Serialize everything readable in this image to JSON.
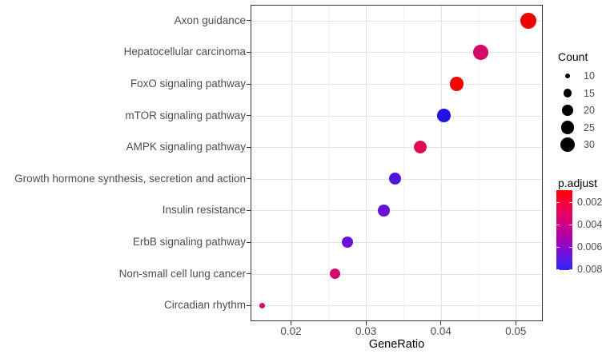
{
  "chart_data": {
    "type": "scatter",
    "title": "",
    "xlabel": "GeneRatio",
    "ylabel": "",
    "xlim": [
      0.0146,
      0.0536
    ],
    "x_major_ticks": [
      0.02,
      0.03,
      0.04,
      0.05
    ],
    "x_major_tick_labels": [
      "0.02",
      "0.03",
      "0.04",
      "0.05"
    ],
    "x_minor_gridlines": [
      0.015,
      0.025,
      0.035,
      0.045
    ],
    "grid": true,
    "legend_position": "right",
    "categories": [
      "Axon guidance",
      "Hepatocellular carcinoma",
      "FoxO signaling pathway",
      "mTOR signaling pathway",
      "AMPK signaling pathway",
      "Growth hormone synthesis, secretion and action",
      "Insulin resistance",
      "ErbB signaling pathway",
      "Non-small cell lung cancer",
      "Circadian rhythm"
    ],
    "points": [
      {
        "category": "Axon guidance",
        "gene_ratio": 0.0517,
        "count": 33,
        "p_adjust": 0.001,
        "color": "#EC0000"
      },
      {
        "category": "Hepatocellular carcinoma",
        "gene_ratio": 0.0453,
        "count": 30,
        "p_adjust": 0.004,
        "color": "#D40A6B"
      },
      {
        "category": "FoxO signaling pathway",
        "gene_ratio": 0.0421,
        "count": 27,
        "p_adjust": 0.0012,
        "color": "#EE0703"
      },
      {
        "category": "mTOR signaling pathway",
        "gene_ratio": 0.0404,
        "count": 26,
        "p_adjust": 0.008,
        "color": "#2214E4"
      },
      {
        "category": "AMPK signaling pathway",
        "gene_ratio": 0.0373,
        "count": 25,
        "p_adjust": 0.0035,
        "color": "#DE0D52"
      },
      {
        "category": "Growth hormone synthesis, secretion and action",
        "gene_ratio": 0.0339,
        "count": 23,
        "p_adjust": 0.007,
        "color": "#4E16DB"
      },
      {
        "category": "Insulin resistance",
        "gene_ratio": 0.0324,
        "count": 22,
        "p_adjust": 0.0065,
        "color": "#6A11D8"
      },
      {
        "category": "ErbB signaling pathway",
        "gene_ratio": 0.0275,
        "count": 21,
        "p_adjust": 0.0065,
        "color": "#6A11D8"
      },
      {
        "category": "Non-small cell lung cancer",
        "gene_ratio": 0.0259,
        "count": 20,
        "p_adjust": 0.004,
        "color": "#D40A6B"
      },
      {
        "category": "Circadian rhythm",
        "gene_ratio": 0.0161,
        "count": 10,
        "p_adjust": 0.004,
        "color": "#D40A6B"
      }
    ],
    "legend_count": {
      "title": "Count",
      "values": [
        10,
        15,
        20,
        25,
        30
      ],
      "labels": [
        "10",
        "15",
        "20",
        "25",
        "30"
      ]
    },
    "legend_padjust": {
      "title": "p.adjust",
      "tick_values": [
        0.002,
        0.004,
        0.006,
        0.008
      ],
      "tick_labels": [
        "0.002",
        "0.004",
        "0.006",
        "0.008"
      ],
      "range": [
        0.0009,
        0.0081
      ],
      "gradient_stops": [
        {
          "pos": 0,
          "color": "#FF0000"
        },
        {
          "pos": 15,
          "color": "#F6003A"
        },
        {
          "pos": 30,
          "color": "#E50063"
        },
        {
          "pos": 45,
          "color": "#CC0089"
        },
        {
          "pos": 60,
          "color": "#A900AF"
        },
        {
          "pos": 75,
          "color": "#7F0DD3"
        },
        {
          "pos": 90,
          "color": "#4E1FEC"
        },
        {
          "pos": 100,
          "color": "#2B23F0"
        }
      ]
    },
    "size_scale": {
      "slope": 4.96,
      "intercept": -8.7
    },
    "colors": {
      "axis_text": "#4D4D4D",
      "axis_title": "#000000",
      "panel_border": "#333333",
      "grid_major": "#E3E3E3",
      "grid_minor": "#F1F1F1",
      "tick": "#333333",
      "legend_dot": "#000000",
      "background": "#FFFFFF"
    }
  }
}
